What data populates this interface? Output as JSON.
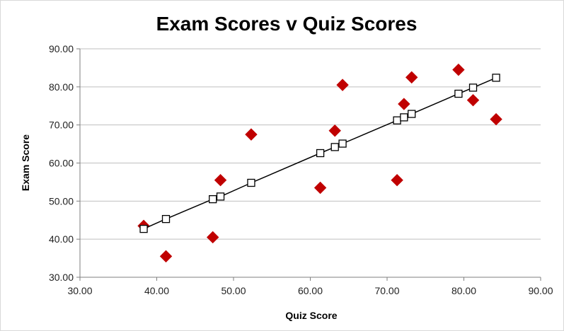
{
  "chart_data": {
    "type": "scatter",
    "title": "Exam Scores v Quiz Scores",
    "xlabel": "Quiz Score",
    "ylabel": "Exam Score",
    "xlim": [
      30,
      90
    ],
    "ylim": [
      30,
      90
    ],
    "x_ticks": [
      "30.00",
      "40.00",
      "50.00",
      "60.00",
      "70.00",
      "80.00",
      "90.00"
    ],
    "y_ticks": [
      "30.00",
      "40.00",
      "50.00",
      "60.00",
      "70.00",
      "80.00",
      "90.00"
    ],
    "grid": "horizontal",
    "legend": "none",
    "series": [
      {
        "marker": "diamond",
        "color": "#c00000",
        "points": [
          {
            "x": 38.3,
            "y": 43.5
          },
          {
            "x": 41.2,
            "y": 35.5
          },
          {
            "x": 47.3,
            "y": 40.5
          },
          {
            "x": 48.3,
            "y": 55.5
          },
          {
            "x": 52.3,
            "y": 67.5
          },
          {
            "x": 61.3,
            "y": 53.5
          },
          {
            "x": 63.2,
            "y": 68.5
          },
          {
            "x": 64.2,
            "y": 80.5
          },
          {
            "x": 71.3,
            "y": 55.5
          },
          {
            "x": 72.2,
            "y": 75.5
          },
          {
            "x": 73.2,
            "y": 82.5
          },
          {
            "x": 79.3,
            "y": 84.5
          },
          {
            "x": 81.2,
            "y": 76.5
          },
          {
            "x": 84.2,
            "y": 71.5
          }
        ]
      },
      {
        "marker": "square-open",
        "color": "#000000",
        "line": true,
        "points": [
          {
            "x": 38.3,
            "y": 42.7
          },
          {
            "x": 41.2,
            "y": 45.3
          },
          {
            "x": 47.3,
            "y": 50.5
          },
          {
            "x": 48.3,
            "y": 51.2
          },
          {
            "x": 52.3,
            "y": 54.8
          },
          {
            "x": 61.3,
            "y": 62.6
          },
          {
            "x": 63.2,
            "y": 64.2
          },
          {
            "x": 64.2,
            "y": 65.1
          },
          {
            "x": 71.3,
            "y": 71.2
          },
          {
            "x": 72.2,
            "y": 72.0
          },
          {
            "x": 73.2,
            "y": 72.9
          },
          {
            "x": 79.3,
            "y": 78.2
          },
          {
            "x": 81.2,
            "y": 79.8
          },
          {
            "x": 84.2,
            "y": 82.4
          }
        ]
      }
    ]
  }
}
